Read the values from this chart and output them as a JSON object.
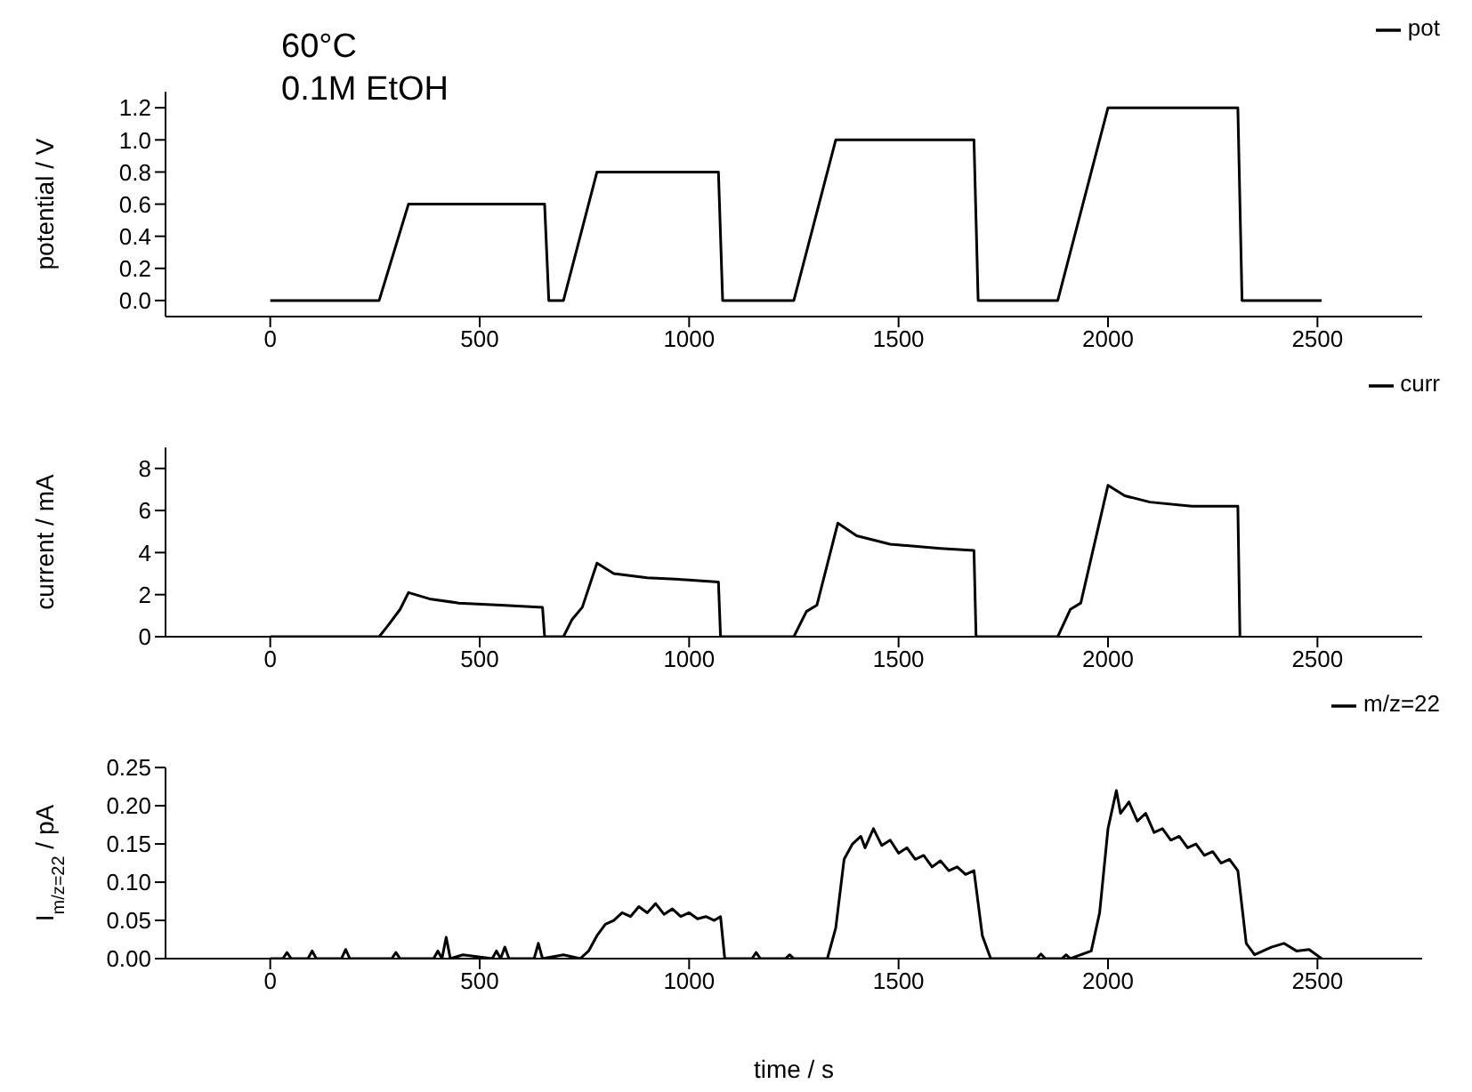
{
  "chart_data": [
    {
      "type": "line",
      "ylabel": "potential / V",
      "annotations": [
        "60°C",
        "0.1M EtOH"
      ],
      "legend": "top right",
      "xlim": [
        -250,
        2750
      ],
      "xticks": [
        0,
        500,
        1000,
        1500,
        2000,
        2500
      ],
      "ylim": [
        -0.1,
        1.3
      ],
      "yticks": [
        {
          "value": 0,
          "label": "0.0"
        },
        0.2,
        0.4,
        0.6,
        0.8,
        {
          "value": 1,
          "label": "1.0"
        },
        1.2
      ],
      "marker": "none",
      "series": [
        {
          "name": "pot",
          "color": "#000000",
          "x": [
            0,
            260,
            330,
            655,
            665,
            700,
            780,
            1070,
            1080,
            1250,
            1350,
            1680,
            1690,
            1880,
            2000,
            2310,
            2320,
            2510
          ],
          "values": [
            0,
            0,
            0.6,
            0.6,
            0,
            0,
            0.8,
            0.8,
            0,
            0,
            1.0,
            1.0,
            0,
            0,
            1.2,
            1.2,
            0,
            0
          ]
        }
      ]
    },
    {
      "type": "line",
      "ylabel": "current / mA",
      "legend": "top right",
      "xlim": [
        -250,
        2750
      ],
      "xticks": [
        0,
        500,
        1000,
        1500,
        2000,
        2500
      ],
      "ylim": [
        0,
        9
      ],
      "yticks": [
        0,
        2,
        4,
        6,
        8
      ],
      "marker": "none",
      "series": [
        {
          "name": "curr",
          "color": "#000000",
          "x": [
            0,
            260,
            280,
            310,
            330,
            380,
            450,
            550,
            650,
            655,
            700,
            720,
            745,
            780,
            820,
            900,
            1000,
            1070,
            1075,
            1250,
            1280,
            1305,
            1355,
            1400,
            1480,
            1600,
            1680,
            1685,
            1880,
            1910,
            1935,
            2000,
            2040,
            2100,
            2200,
            2310,
            2315
          ],
          "values": [
            0,
            0,
            0.5,
            1.3,
            2.1,
            1.8,
            1.6,
            1.5,
            1.4,
            0,
            0,
            0.8,
            1.4,
            3.5,
            3.0,
            2.8,
            2.7,
            2.6,
            0,
            0,
            1.2,
            1.5,
            5.4,
            4.8,
            4.4,
            4.2,
            4.1,
            0,
            0,
            1.3,
            1.6,
            7.2,
            6.7,
            6.4,
            6.2,
            6.2,
            0
          ]
        }
      ]
    },
    {
      "type": "line",
      "xlabel": "time / s",
      "ylabel": "I$_{m/z=22}$ / pA",
      "legend": "top right",
      "xlim": [
        -250,
        2750
      ],
      "xticks": [
        0,
        500,
        1000,
        1500,
        2000,
        2500
      ],
      "ylim": [
        0,
        0.25
      ],
      "yticks": [
        {
          "value": 0,
          "label": "0.00"
        },
        0.05,
        {
          "value": 0.1,
          "label": "0.10"
        },
        0.15,
        {
          "value": 0.2,
          "label": "0.20"
        },
        0.25
      ],
      "marker": "none",
      "series": [
        {
          "name": "m/z=22",
          "color": "#000000",
          "x": [
            0,
            30,
            40,
            50,
            90,
            100,
            110,
            170,
            180,
            190,
            290,
            300,
            310,
            390,
            400,
            410,
            420,
            430,
            460,
            530,
            540,
            550,
            560,
            570,
            630,
            640,
            650,
            700,
            740,
            760,
            780,
            800,
            820,
            840,
            860,
            880,
            900,
            920,
            940,
            960,
            980,
            1000,
            1020,
            1040,
            1060,
            1075,
            1085,
            1150,
            1160,
            1170,
            1230,
            1240,
            1250,
            1330,
            1350,
            1370,
            1390,
            1410,
            1420,
            1440,
            1460,
            1480,
            1500,
            1520,
            1540,
            1560,
            1580,
            1600,
            1620,
            1640,
            1660,
            1680,
            1700,
            1720,
            1830,
            1840,
            1850,
            1890,
            1900,
            1910,
            1960,
            1980,
            2000,
            2020,
            2030,
            2050,
            2070,
            2090,
            2110,
            2130,
            2150,
            2170,
            2190,
            2210,
            2230,
            2250,
            2270,
            2290,
            2310,
            2330,
            2350,
            2390,
            2420,
            2450,
            2480,
            2510
          ],
          "values": [
            0,
            0,
            0.008,
            0,
            0,
            0.01,
            0,
            0,
            0.012,
            0,
            0,
            0.008,
            0,
            0,
            0.01,
            0,
            0.028,
            0,
            0.005,
            0,
            0.01,
            0,
            0.015,
            0,
            0,
            0.02,
            0,
            0.005,
            0,
            0.01,
            0.03,
            0.045,
            0.05,
            0.06,
            0.055,
            0.068,
            0.06,
            0.072,
            0.058,
            0.065,
            0.055,
            0.06,
            0.052,
            0.055,
            0.05,
            0.055,
            0,
            0,
            0.008,
            0,
            0,
            0.005,
            0,
            0,
            0.04,
            0.13,
            0.15,
            0.16,
            0.145,
            0.17,
            0.148,
            0.155,
            0.138,
            0.145,
            0.13,
            0.135,
            0.12,
            0.128,
            0.115,
            0.12,
            0.11,
            0.115,
            0.03,
            0,
            0,
            0.006,
            0,
            0,
            0.005,
            0,
            0.01,
            0.06,
            0.17,
            0.22,
            0.19,
            0.205,
            0.18,
            0.19,
            0.165,
            0.17,
            0.155,
            0.16,
            0.145,
            0.15,
            0.135,
            0.14,
            0.125,
            0.13,
            0.115,
            0.02,
            0.005,
            0.015,
            0.02,
            0.01,
            0.012,
            0
          ]
        }
      ]
    }
  ]
}
